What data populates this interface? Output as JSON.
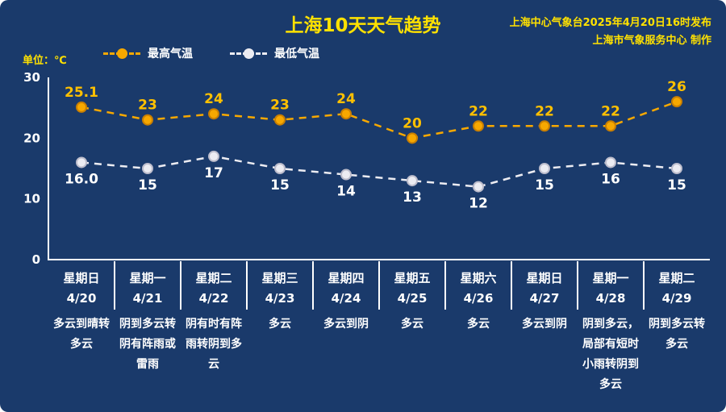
{
  "title": "上海10天天气趋势",
  "source": {
    "line1": "上海中心气象台2025年4月20日16时发布",
    "line2": "上海市气象服务中心 制作"
  },
  "unit_label": "单位：℃",
  "colors": {
    "background": "#1a3a6b",
    "accent_yellow": "#ffe100",
    "high": "#f7a800",
    "high_stroke": "#c97f00",
    "high_label": "#ffc000",
    "low": "#ececf2",
    "low_stroke": "#bdbdcc",
    "axis": "#ffffff",
    "text": "#ffffff"
  },
  "legend": [
    {
      "label": "最高气温",
      "series": "high"
    },
    {
      "label": "最低气温",
      "series": "low"
    }
  ],
  "chart_data": {
    "type": "line",
    "title": "上海10天天气趋势",
    "categories": [
      "4/20",
      "4/21",
      "4/22",
      "4/23",
      "4/24",
      "4/25",
      "4/26",
      "4/27",
      "4/28",
      "4/29"
    ],
    "weekdays": [
      "星期日",
      "星期一",
      "星期二",
      "星期三",
      "星期四",
      "星期五",
      "星期六",
      "星期日",
      "星期一",
      "星期二"
    ],
    "series": [
      {
        "name": "最高气温",
        "values": [
          25.1,
          23,
          24,
          23,
          24,
          20,
          22,
          22,
          22,
          26
        ],
        "labels": [
          "25.1",
          "23",
          "24",
          "23",
          "24",
          "20",
          "22",
          "22",
          "22",
          "26"
        ]
      },
      {
        "name": "最低气温",
        "values": [
          16.0,
          15,
          17,
          15,
          14,
          13,
          12,
          15,
          16,
          15
        ],
        "labels": [
          "16.0",
          "15",
          "17",
          "15",
          "14",
          "13",
          "12",
          "15",
          "16",
          "15"
        ]
      }
    ],
    "xlabel": "",
    "ylabel": "单位：℃",
    "ylim": [
      0,
      30
    ],
    "yticks": [
      0,
      10,
      20,
      30
    ],
    "grid": false,
    "legend_position": "top-left",
    "line_style": "dashed"
  },
  "days": [
    {
      "weekday": "星期日",
      "date": "4/20",
      "weather": "多云到晴转多云"
    },
    {
      "weekday": "星期一",
      "date": "4/21",
      "weather": "阴到多云转阴有阵雨或雷雨"
    },
    {
      "weekday": "星期二",
      "date": "4/22",
      "weather": "阴有时有阵雨转阴到多云"
    },
    {
      "weekday": "星期三",
      "date": "4/23",
      "weather": "多云"
    },
    {
      "weekday": "星期四",
      "date": "4/24",
      "weather": "多云到阴"
    },
    {
      "weekday": "星期五",
      "date": "4/25",
      "weather": "多云"
    },
    {
      "weekday": "星期六",
      "date": "4/26",
      "weather": "多云"
    },
    {
      "weekday": "星期日",
      "date": "4/27",
      "weather": "多云到阴"
    },
    {
      "weekday": "星期一",
      "date": "4/28",
      "weather": "阴到多云，局部有短时小雨转阴到多云"
    },
    {
      "weekday": "星期二",
      "date": "4/29",
      "weather": "阴到多云转多云"
    }
  ]
}
